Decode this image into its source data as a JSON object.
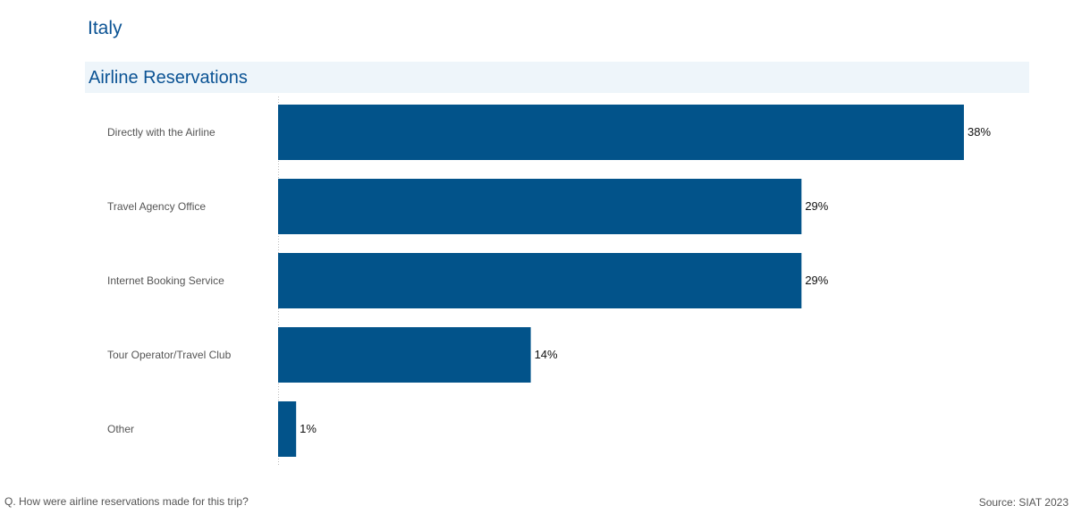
{
  "page": {
    "title": "Italy",
    "section_title": "Airline Reservations"
  },
  "colors": {
    "bar": "#02538a",
    "title": "#0b5394",
    "section_band": "#eef5fa"
  },
  "chart_data": {
    "type": "bar",
    "orientation": "horizontal",
    "title": "Airline Reservations",
    "categories": [
      "Directly with the Airline",
      "Travel Agency Office",
      "Internet Booking Service",
      "Tour Operator/Travel Club",
      "Other"
    ],
    "values": [
      38,
      29,
      29,
      14,
      1
    ],
    "value_labels": [
      "38%",
      "29%",
      "29%",
      "14%",
      "1%"
    ],
    "value_unit": "%",
    "xlim": [
      0,
      38
    ],
    "grid": false,
    "legend": "none"
  },
  "footer": {
    "question": "Q. How were airline reservations made for this trip?",
    "source": "Source: SIAT 2023"
  }
}
